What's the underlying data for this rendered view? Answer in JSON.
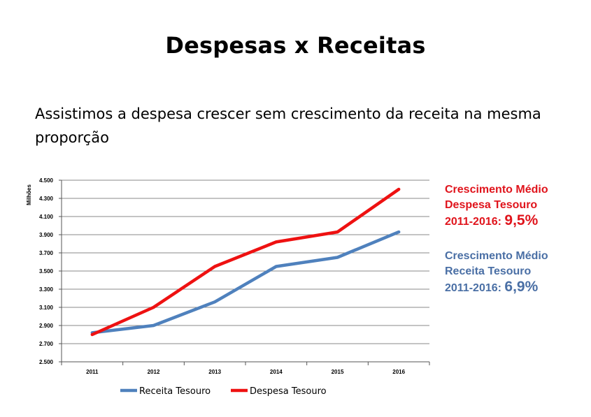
{
  "slide": {
    "title": "Despesas x Receitas",
    "subtitle": "Assistimos a despesa crescer sem crescimento da receita na mesma proporção"
  },
  "colors": {
    "receita": "#4f81bd",
    "despesa": "#ee1111",
    "note_receita": "#4a6fa5",
    "note_despesa": "#e0141c",
    "grid": "#888888"
  },
  "notes": {
    "despesa": {
      "line1": "Crescimento Médio",
      "line2": "Despesa Tesouro",
      "period": "2011-2016:",
      "pct": "9,5%"
    },
    "receita": {
      "line1": "Crescimento Médio",
      "line2": "Receita Tesouro",
      "period": "2011-2016:",
      "pct": "6,9%"
    }
  },
  "chart_data": {
    "type": "line",
    "ylabel": "Milhões",
    "xlabel": "",
    "ylim": [
      2500,
      4500
    ],
    "yticks": [
      2500,
      2700,
      2900,
      3100,
      3300,
      3500,
      3700,
      3900,
      4100,
      4300,
      4500
    ],
    "ytick_labels": [
      "2.500",
      "2.700",
      "2.900",
      "3.100",
      "3.300",
      "3.500",
      "3.700",
      "3.900",
      "4.100",
      "4.300",
      "4.500"
    ],
    "categories": [
      "2011",
      "2012",
      "2013",
      "2014",
      "2015",
      "2016"
    ],
    "grid": true,
    "legend_position": "bottom",
    "series": [
      {
        "name": "Receita Tesouro",
        "values": [
          2820,
          2900,
          3160,
          3550,
          3650,
          3930
        ]
      },
      {
        "name": "Despesa Tesouro",
        "values": [
          2800,
          3100,
          3550,
          3820,
          3930,
          4400
        ]
      }
    ]
  }
}
